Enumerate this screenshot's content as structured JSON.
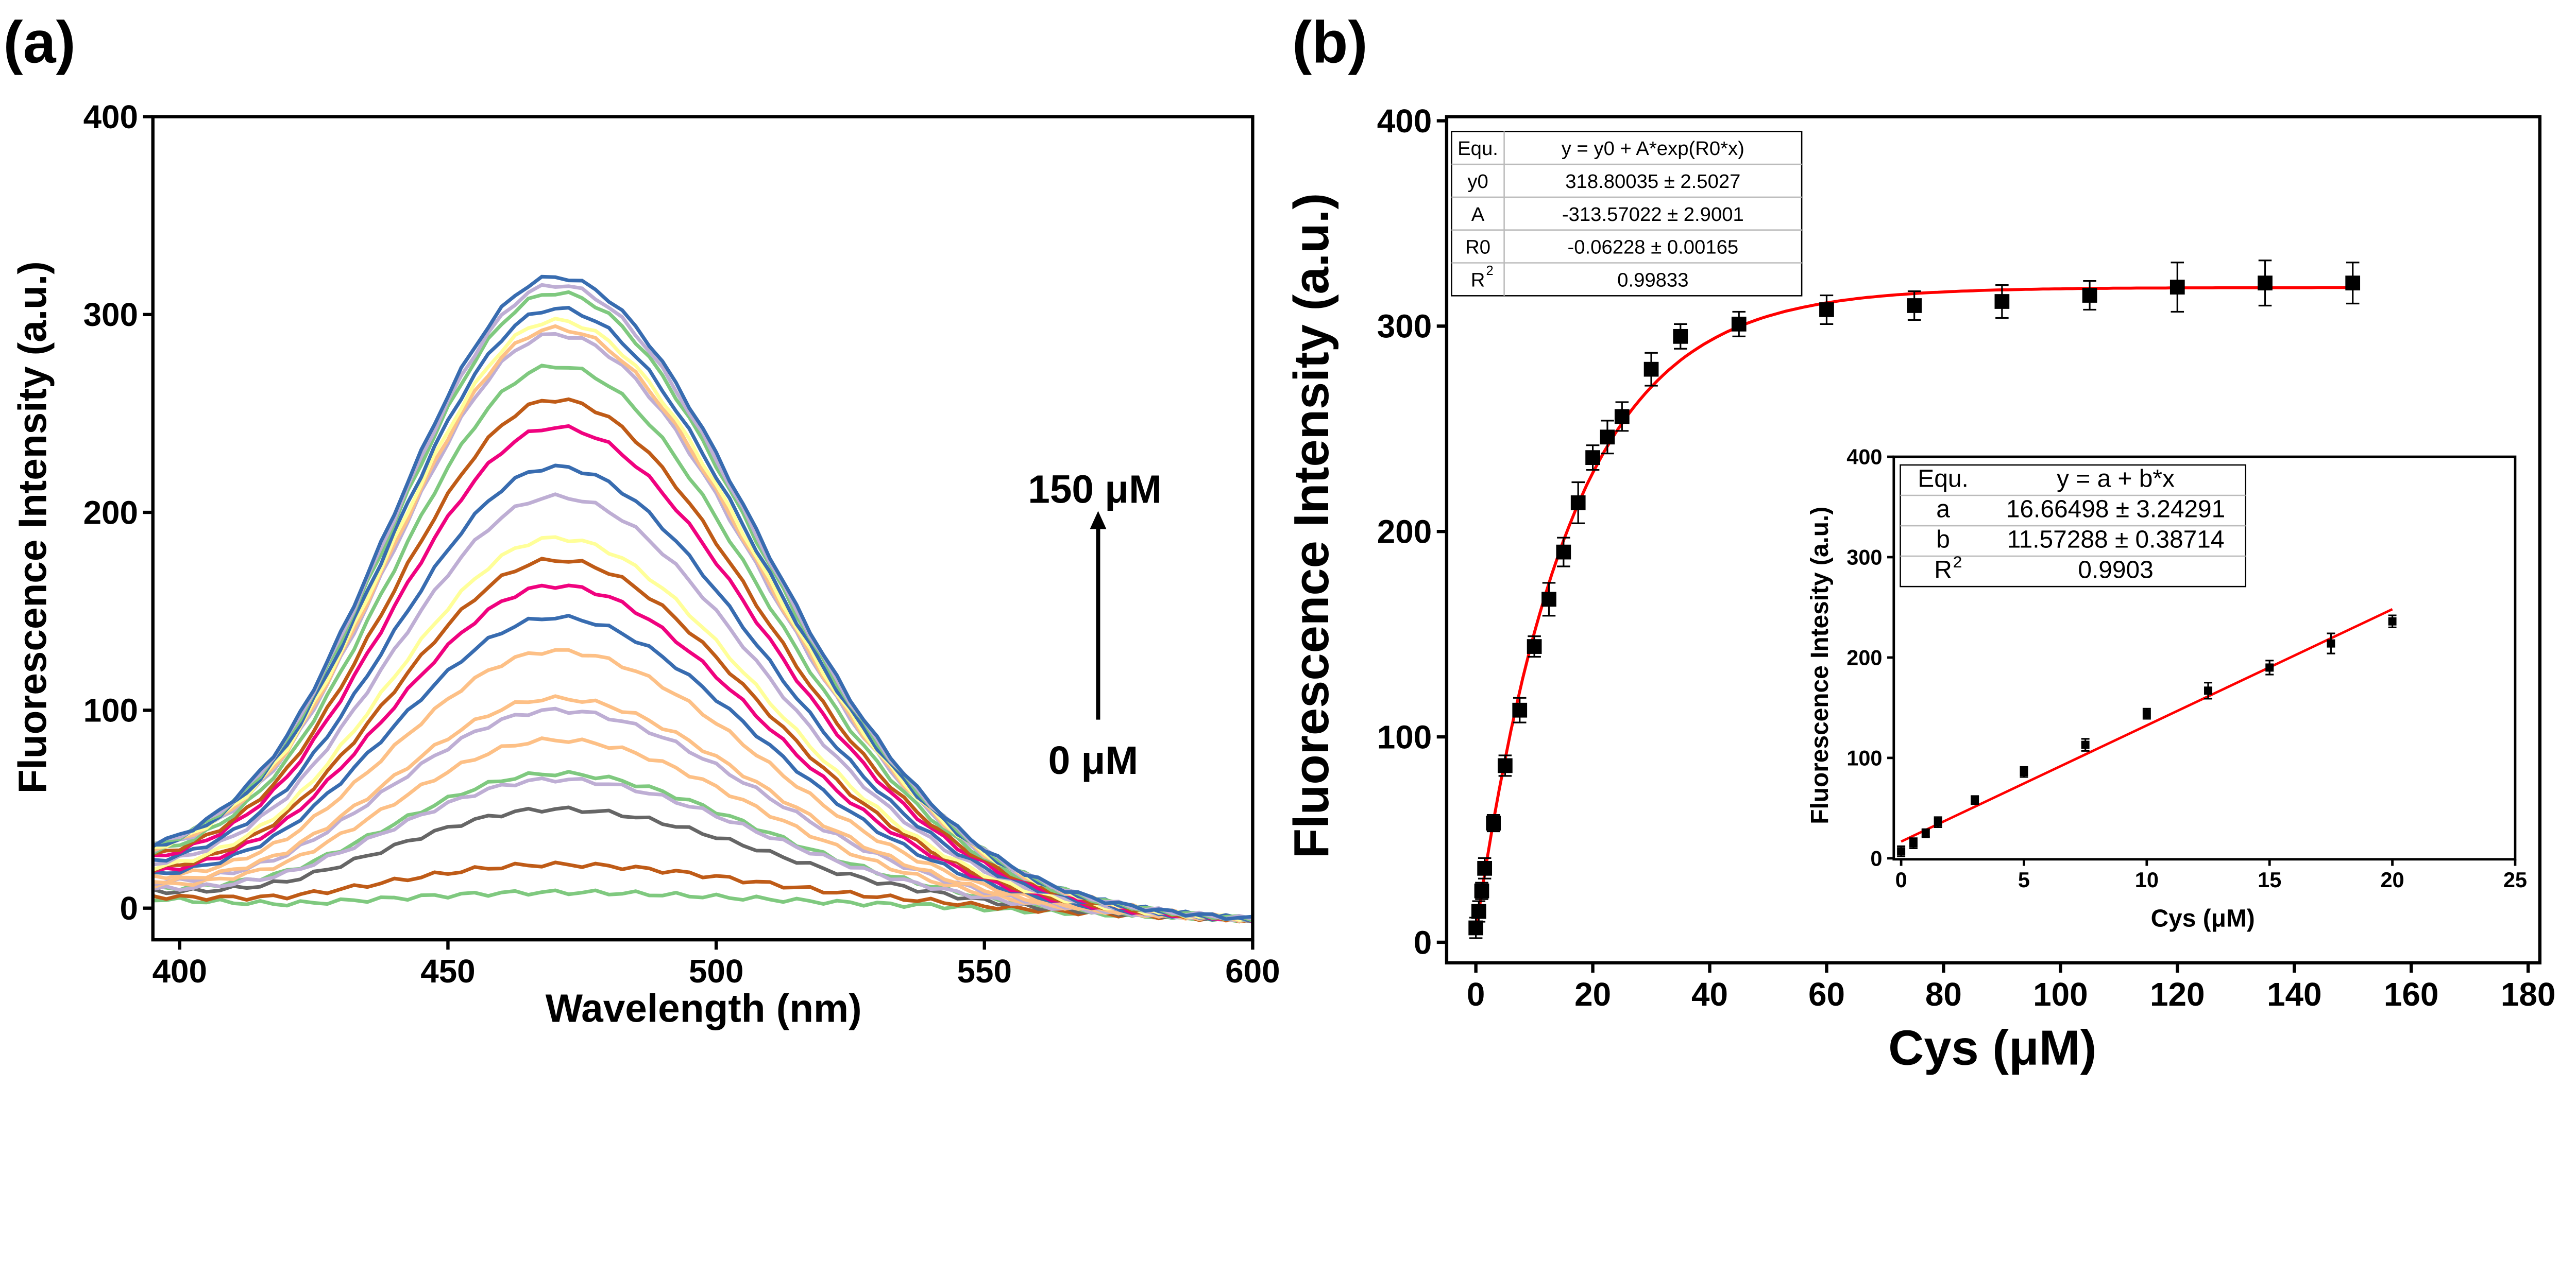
{
  "chart_data": [
    {
      "type": "line",
      "panel_label": "(a)",
      "xlabel": "Wavelength (nm)",
      "ylabel": "Fluorescence Intensity (a.u.)",
      "xlim": [
        395,
        600
      ],
      "ylim": [
        -16,
        400
      ],
      "xticks": [
        "400",
        "450",
        "500",
        "550",
        "600"
      ],
      "yticks": [
        "0",
        "100",
        "200",
        "300",
        "400"
      ],
      "peak_wavelength": 470,
      "annotation_top": "150 μM",
      "annotation_bottom": "0 μM",
      "series_peaks": [
        8,
        22,
        50,
        68,
        65,
        85,
        100,
        106,
        130,
        147,
        163,
        176,
        187,
        208,
        223,
        243,
        257,
        274,
        290,
        293,
        297,
        303,
        311,
        315,
        319
      ],
      "series_colors": [
        "#7fc97f",
        "#bf5b17",
        "#666666",
        "#7fc97f",
        "#beaed4",
        "#fdc086",
        "#beaed4",
        "#fdc086",
        "#fdc086",
        "#386cb0",
        "#f0027f",
        "#bf5b17",
        "#ffff99",
        "#beaed4",
        "#386cb0",
        "#f0027f",
        "#bf5b17",
        "#7fc97f",
        "#beaed4",
        "#fdc086",
        "#ffff99",
        "#386cb0",
        "#7fc97f",
        "#beaed4",
        "#386cb0"
      ]
    },
    {
      "type": "scatter",
      "panel_label": "(b)",
      "xlabel": "Cys (μM)",
      "ylabel": "Fluorescence Intensity (a.u.)",
      "xlim": [
        -5,
        182
      ],
      "ylim": [
        -10,
        402
      ],
      "xticks": [
        "0",
        "20",
        "40",
        "60",
        "80",
        "100",
        "120",
        "140",
        "160",
        "180"
      ],
      "yticks": [
        "0",
        "100",
        "200",
        "300",
        "400"
      ],
      "x": [
        0,
        0.5,
        1,
        1.5,
        3,
        5,
        7.5,
        10,
        12.5,
        15,
        17.5,
        20,
        22.5,
        25,
        30,
        35,
        45,
        60,
        75,
        90,
        105,
        120,
        135,
        150
      ],
      "y": [
        7,
        15,
        25,
        36,
        58,
        86,
        113,
        144,
        167,
        190,
        214,
        236,
        246,
        256,
        279,
        295,
        301,
        308,
        310,
        312,
        315,
        319,
        321,
        321
      ],
      "yerr": [
        5,
        5,
        4,
        5,
        4,
        5,
        6,
        5,
        8,
        7,
        10,
        6,
        8,
        7,
        8,
        6,
        6,
        7,
        7,
        8,
        7,
        12,
        11,
        10
      ],
      "fit": {
        "type": "exponential",
        "y0": 318.80035,
        "A": -313.57022,
        "R0": -0.06228,
        "color": "#ff0000"
      },
      "table": {
        "rows": [
          [
            "Equ.",
            "y = y0 + A*exp(R0*x)"
          ],
          [
            "y0",
            "318.80035 ± 2.5027"
          ],
          [
            "A",
            "-313.57022 ± 2.9001"
          ],
          [
            "R0",
            "-0.06228 ± 0.00165"
          ],
          [
            "R",
            "0.99833"
          ]
        ],
        "r2_sup": "2"
      }
    },
    {
      "type": "scatter",
      "panel_label": "inset",
      "xlabel": "Cys (μM)",
      "ylabel": "Fluorescence Intesity (a.u.)",
      "xlim": [
        -0.3,
        25
      ],
      "ylim": [
        -1,
        400
      ],
      "xticks": [
        "0",
        "5",
        "10",
        "15",
        "20",
        "25"
      ],
      "yticks": [
        "0",
        "100",
        "200",
        "300",
        "400"
      ],
      "x": [
        0,
        0.5,
        1,
        1.5,
        3,
        5,
        7.5,
        10,
        12.5,
        15,
        17.5,
        20
      ],
      "y": [
        7,
        15,
        25,
        36,
        58,
        86,
        113,
        144,
        167,
        190,
        214,
        236
      ],
      "yerr": [
        5,
        5,
        4,
        5,
        4,
        5,
        6,
        5,
        8,
        7,
        10,
        6
      ],
      "fit": {
        "type": "linear",
        "a": 16.66498,
        "b": 11.57288,
        "color": "#ff0000"
      },
      "table": {
        "rows": [
          [
            "Equ.",
            "y = a + b*x"
          ],
          [
            "a",
            "16.66498 ± 3.24291"
          ],
          [
            "b",
            "11.57288 ± 0.38714"
          ],
          [
            "R",
            "0.9903"
          ]
        ],
        "r2_sup": "2"
      }
    }
  ]
}
